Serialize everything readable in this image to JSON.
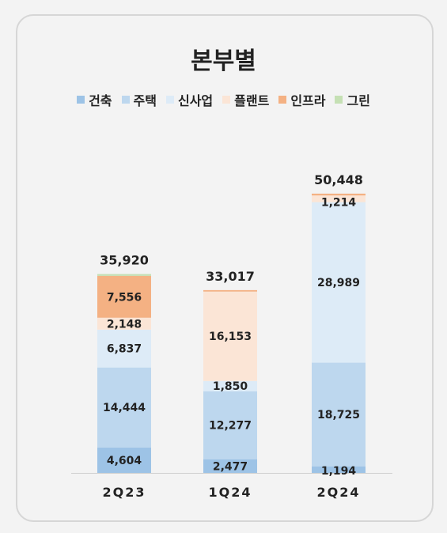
{
  "chart_data": {
    "type": "bar",
    "stacked": true,
    "title": "본부별",
    "categories": [
      "2Q23",
      "1Q24",
      "2Q24"
    ],
    "series": [
      {
        "name": "건축",
        "color": "#9dc3e6",
        "values": [
          4604,
          2477,
          1194
        ]
      },
      {
        "name": "주택",
        "color": "#bdd7ee",
        "values": [
          14444,
          12277,
          18725
        ]
      },
      {
        "name": "신사업",
        "color": "#ddebf7",
        "values": [
          6837,
          1850,
          28989
        ]
      },
      {
        "name": "플랜트",
        "color": "#fbe5d6",
        "values": [
          2148,
          16153,
          1214
        ]
      },
      {
        "name": "인프라",
        "color": "#f4b183",
        "values": [
          7556,
          260,
          326
        ]
      },
      {
        "name": "그린",
        "color": "#c5e0b4",
        "values": [
          331,
          0,
          0
        ]
      }
    ],
    "data_labels": [
      [
        "4,604",
        "14,444",
        "6,837",
        "2,148",
        "7,556",
        ""
      ],
      [
        "2,477",
        "12,277",
        "1,850",
        "16,153",
        "",
        ""
      ],
      [
        "1,194",
        "18,725",
        "28,989",
        "1,214",
        "",
        ""
      ]
    ],
    "totals": [
      "35,920",
      "33,017",
      "50,448"
    ],
    "legend_position": "top",
    "grid": false
  }
}
